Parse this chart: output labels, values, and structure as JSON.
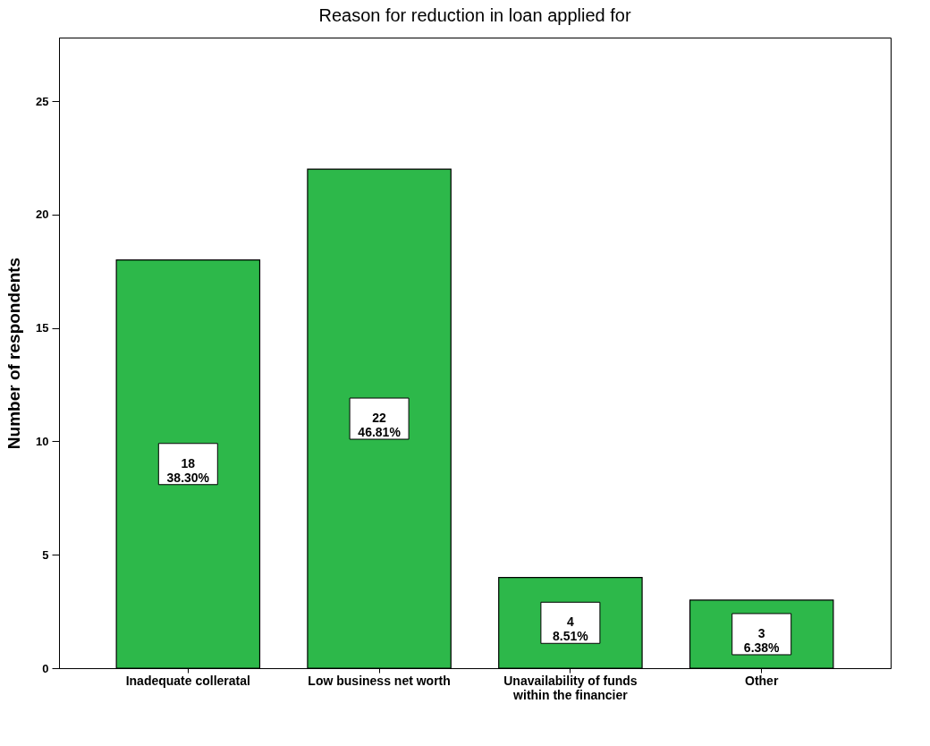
{
  "chart_data": {
    "type": "bar",
    "title": "Reason for reduction in loan applied for",
    "ylabel": "Number of respondents",
    "categories": [
      "Inadequate colleratal",
      "Low business net worth",
      "Unavailability of funds within the financier",
      "Other"
    ],
    "values": [
      18,
      22,
      4,
      3
    ],
    "value_labels": [
      "18\n38.30%",
      "22\n46.81%",
      "4\n8.51%",
      "3\n6.38%"
    ],
    "color": "#2db84a",
    "ylim": [
      0,
      27.8
    ],
    "yticks": [
      0,
      5,
      10,
      15,
      20,
      25
    ],
    "grid": false
  }
}
